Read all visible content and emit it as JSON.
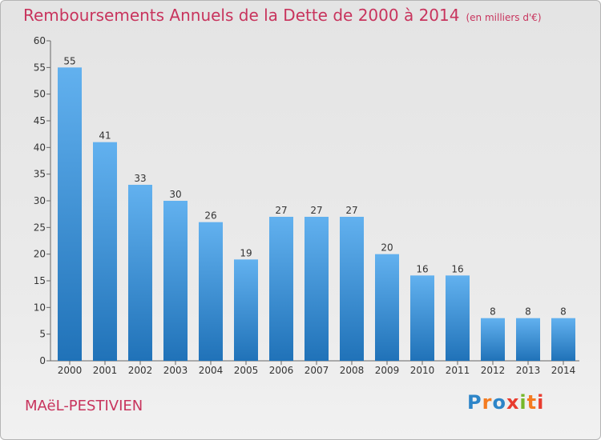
{
  "title": "Remboursements Annuels de la Dette de 2000 à 2014",
  "unit": "(en milliers d'€)",
  "commune": "MAëL-PESTIVIEN",
  "logo": {
    "letters": [
      "P",
      "r",
      "o",
      "x",
      "i",
      "t",
      "i"
    ],
    "colors": [
      "#2d85c8",
      "#f47b20",
      "#2d85c8",
      "#e83c2f",
      "#76b82a",
      "#f47b20",
      "#e83c2f"
    ]
  },
  "colors": {
    "title": "#c8345d",
    "bar_top": "#62b1ef",
    "bar_bottom": "#2072b8"
  },
  "chart_data": {
    "type": "bar",
    "categories": [
      "2000",
      "2001",
      "2002",
      "2003",
      "2004",
      "2005",
      "2006",
      "2007",
      "2008",
      "2009",
      "2010",
      "2011",
      "2012",
      "2013",
      "2014"
    ],
    "values": [
      55,
      41,
      33,
      30,
      26,
      19,
      27,
      27,
      27,
      20,
      16,
      16,
      8,
      8,
      8
    ],
    "ylim": [
      0,
      60
    ],
    "yticks": [
      0,
      5,
      10,
      15,
      20,
      25,
      30,
      35,
      40,
      45,
      50,
      55,
      60
    ],
    "grid": false,
    "xlabel": "",
    "ylabel": ""
  }
}
